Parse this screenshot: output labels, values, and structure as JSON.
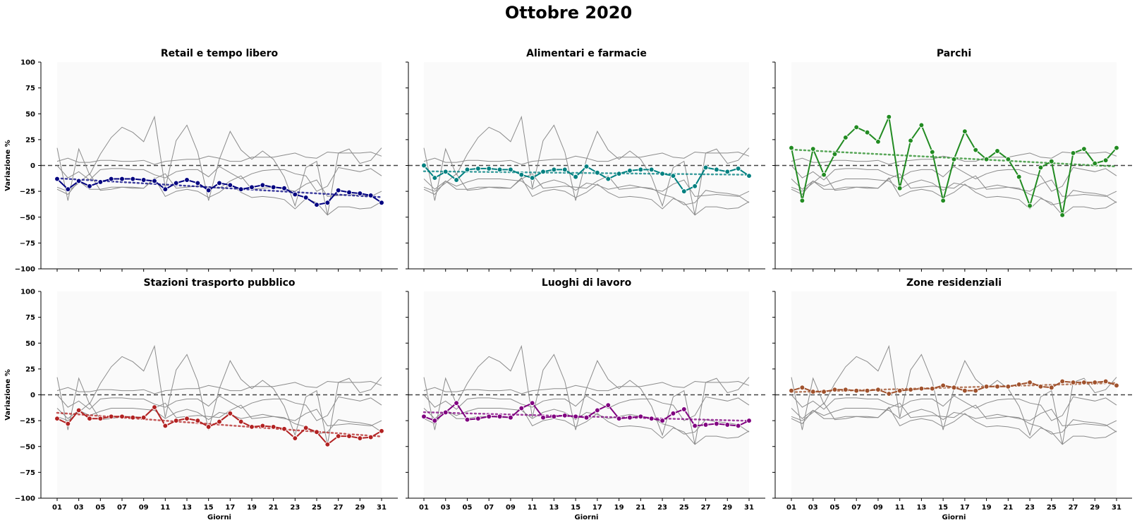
{
  "figure": {
    "title": "Ottobre 2020"
  },
  "chart_data": {
    "type": "line",
    "title": "Ottobre 2020",
    "xlabel": "Giorni",
    "ylabel": "Variazione %",
    "ylim": [
      -100,
      100
    ],
    "yticks": [
      "100",
      "75",
      "50",
      "25",
      "0",
      "−25",
      "−50",
      "−75",
      "−100"
    ],
    "xticks": [
      "01",
      "03",
      "05",
      "07",
      "09",
      "11",
      "13",
      "15",
      "17",
      "19",
      "21",
      "23",
      "25",
      "27",
      "29",
      "31"
    ],
    "days": [
      1,
      2,
      3,
      4,
      5,
      6,
      7,
      8,
      9,
      10,
      11,
      12,
      13,
      14,
      15,
      16,
      17,
      18,
      19,
      20,
      21,
      22,
      23,
      24,
      25,
      26,
      27,
      28,
      29,
      30,
      31
    ],
    "reference_line": 0,
    "grid": false,
    "panels": [
      {
        "name": "Retail e tempo libero",
        "color": "#000080",
        "values": [
          -13,
          -23,
          -15,
          -20,
          -16,
          -13,
          -13,
          -13,
          -14,
          -15,
          -23,
          -17,
          -14,
          -17,
          -24,
          -17,
          -19,
          -23,
          -21,
          -19,
          -21,
          -22,
          -28,
          -31,
          -38,
          -36,
          -24,
          -26,
          -27,
          -29,
          -36
        ]
      },
      {
        "name": "Alimentari e farmacie",
        "color": "#008080",
        "values": [
          0,
          -12,
          -6,
          -14,
          -4,
          -3,
          -3,
          -4,
          -4,
          -9,
          -12,
          -6,
          -4,
          -4,
          -11,
          -1,
          -7,
          -13,
          -8,
          -5,
          -4,
          -4,
          -8,
          -10,
          -25,
          -20,
          -2,
          -4,
          -6,
          -3,
          -10
        ]
      },
      {
        "name": "Parchi",
        "color": "#228B22",
        "values": [
          17,
          -34,
          16,
          -9,
          11,
          27,
          37,
          32,
          23,
          47,
          -22,
          24,
          39,
          13,
          -34,
          6,
          33,
          15,
          6,
          14,
          6,
          -11,
          -39,
          -2,
          4,
          -48,
          12,
          16,
          2,
          5,
          17
        ]
      },
      {
        "name": "Stazioni trasporto pubblico",
        "color": "#B22222",
        "values": [
          -23,
          -28,
          -15,
          -23,
          -23,
          -21,
          -21,
          -22,
          -22,
          -12,
          -30,
          -25,
          -23,
          -25,
          -31,
          -26,
          -18,
          -26,
          -31,
          -30,
          -31,
          -33,
          -42,
          -32,
          -36,
          -48,
          -40,
          -40,
          -42,
          -41,
          -35
        ]
      },
      {
        "name": "Luoghi di lavoro",
        "color": "#800080",
        "values": [
          -21,
          -25,
          -17,
          -8,
          -24,
          -23,
          -21,
          -21,
          -22,
          -13,
          -8,
          -22,
          -21,
          -20,
          -21,
          -22,
          -15,
          -10,
          -23,
          -22,
          -21,
          -23,
          -25,
          -18,
          -14,
          -30,
          -29,
          -28,
          -29,
          -30,
          -25
        ]
      },
      {
        "name": "Zone residenziali",
        "color": "#A0522D",
        "values": [
          4,
          7,
          3,
          3,
          5,
          5,
          4,
          4,
          5,
          1,
          4,
          5,
          6,
          6,
          9,
          7,
          4,
          4,
          8,
          8,
          8,
          10,
          12,
          8,
          7,
          13,
          12,
          12,
          12,
          13,
          9
        ]
      }
    ]
  }
}
